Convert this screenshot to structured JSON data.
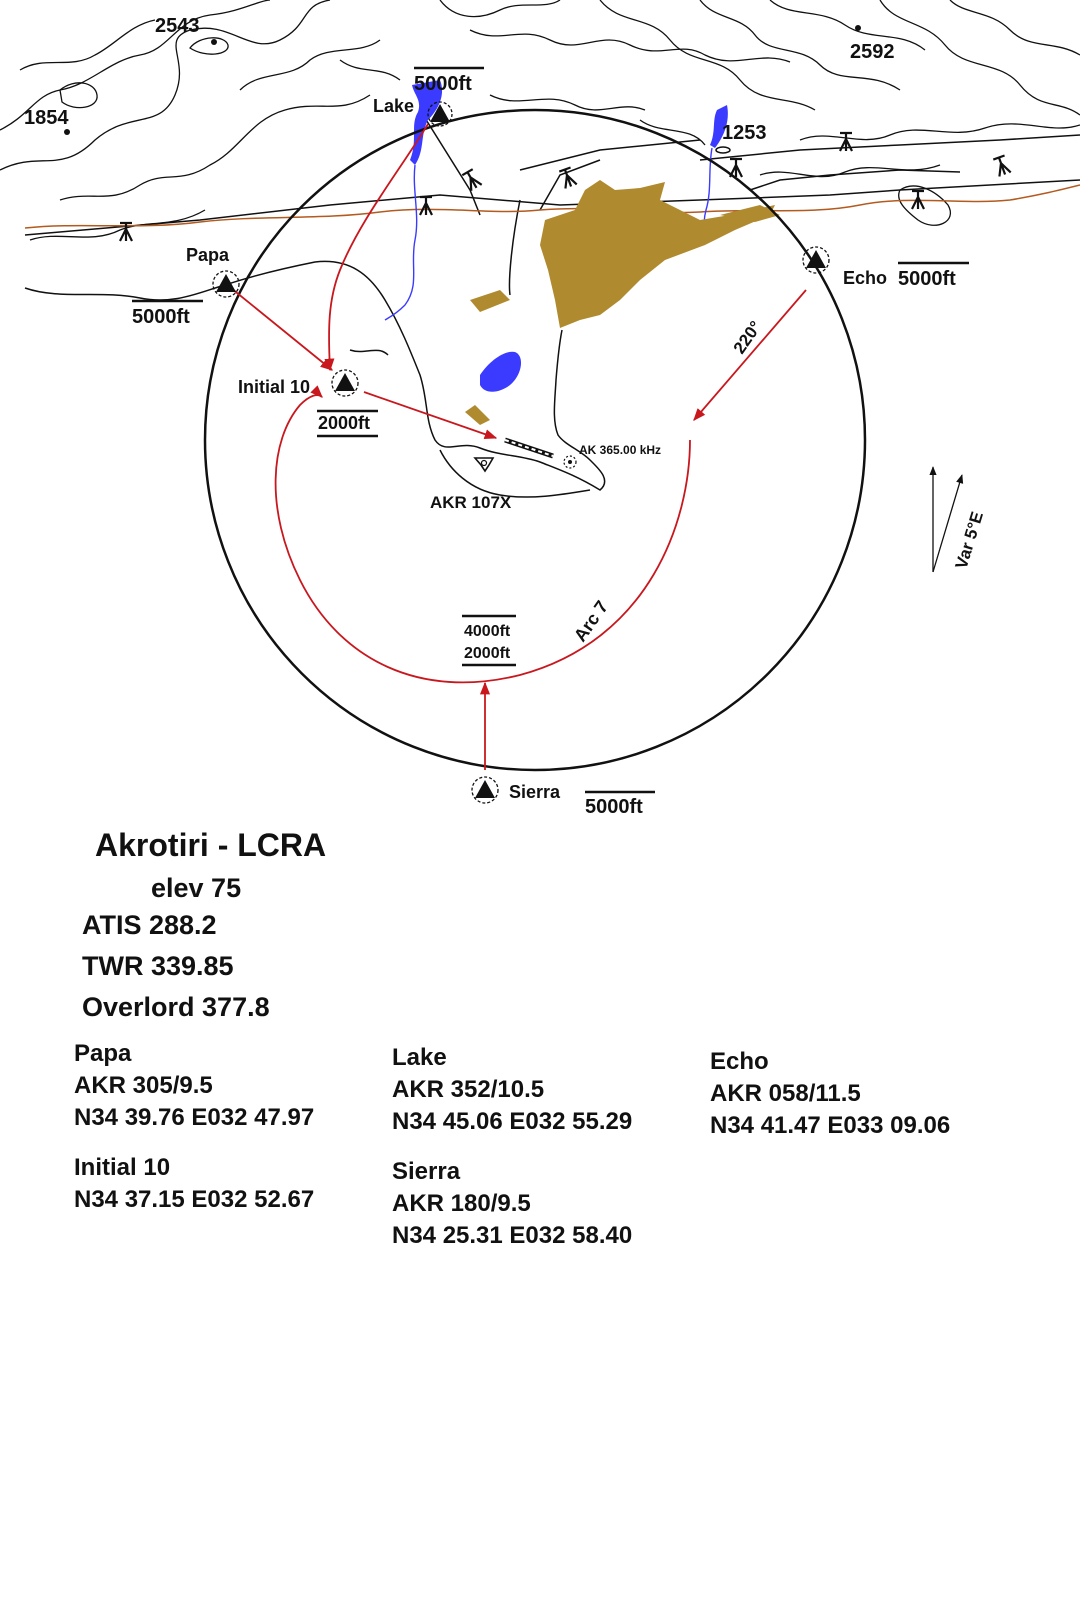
{
  "chart": {
    "peaks": [
      {
        "label": "2543"
      },
      {
        "label": "1854"
      },
      {
        "label": "2592"
      },
      {
        "label": "1253"
      }
    ],
    "waypoints": {
      "lake": {
        "label": "Lake",
        "alt": "5000ft"
      },
      "papa": {
        "label": "Papa",
        "alt": "5000ft"
      },
      "echo": {
        "label": "Echo",
        "alt": "5000ft"
      },
      "initial": {
        "label": "Initial 10",
        "alt": "2000ft"
      },
      "sierra": {
        "label": "Sierra",
        "alt": "5000ft"
      }
    },
    "arc_label": "Arc 7",
    "arc_alt_upper": "4000ft",
    "arc_alt_lower": "2000ft",
    "course_label": "220°",
    "ndb_label": "AK 365.00 kHz",
    "tacan_label": "AKR 107X",
    "variation_label": "Var 5°E",
    "colors": {
      "route": "#c8181e",
      "water": "#3b3bff",
      "urban": "#b08a2e",
      "road": "#b35a1e",
      "outline": "#111111"
    }
  },
  "airport": {
    "title": "Akrotiri - LCRA",
    "elev": "elev 75",
    "atis": "ATIS 288.2",
    "twr": "TWR 339.85",
    "overlord": "Overlord 377.8"
  },
  "points": {
    "papa": {
      "name": "Papa",
      "bearing": "AKR 305/9.5",
      "coords": "N34 39.76 E032 47.97"
    },
    "initial": {
      "name": "Initial 10",
      "coords": "N34 37.15 E032 52.67"
    },
    "lake": {
      "name": "Lake",
      "bearing": "AKR 352/10.5",
      "coords": "N34 45.06 E032 55.29"
    },
    "sierra": {
      "name": "Sierra",
      "bearing": "AKR 180/9.5",
      "coords": "N34 25.31 E032 58.40"
    },
    "echo": {
      "name": "Echo",
      "bearing": "AKR 058/11.5",
      "coords": "N34 41.47 E033 09.06"
    }
  }
}
